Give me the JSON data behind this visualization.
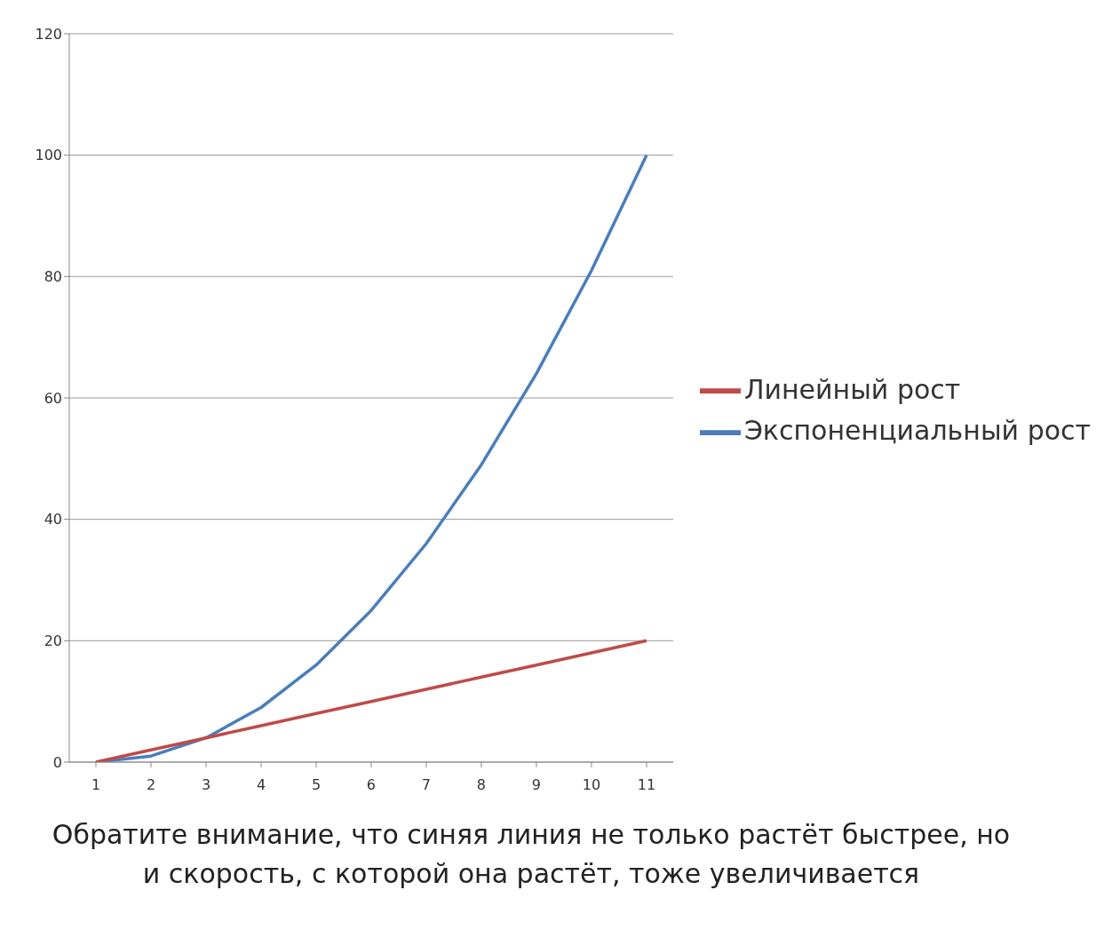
{
  "chart_data": {
    "type": "line",
    "categories": [
      "1",
      "2",
      "3",
      "4",
      "5",
      "6",
      "7",
      "8",
      "9",
      "10",
      "11"
    ],
    "series": [
      {
        "name": "Экспоненциальный рост",
        "color": "#4a7ebb",
        "values": [
          0,
          1,
          4,
          9,
          16,
          25,
          36,
          49,
          64,
          81,
          100
        ]
      },
      {
        "name": "Линейный рост",
        "color": "#be4b48",
        "values": [
          0,
          2,
          4,
          6,
          8,
          10,
          12,
          14,
          16,
          18,
          20
        ]
      }
    ],
    "ylim": [
      0,
      120
    ],
    "yticks": [
      0,
      20,
      40,
      60,
      80,
      100,
      120
    ],
    "grid": "y",
    "legend": "right",
    "marker": "none",
    "line_style": "solid",
    "annotations": [
      "Обратите внимание, что синяя линия не только растёт быстрее, но и скорость, с которой она растёт, тоже увеличивается"
    ]
  }
}
